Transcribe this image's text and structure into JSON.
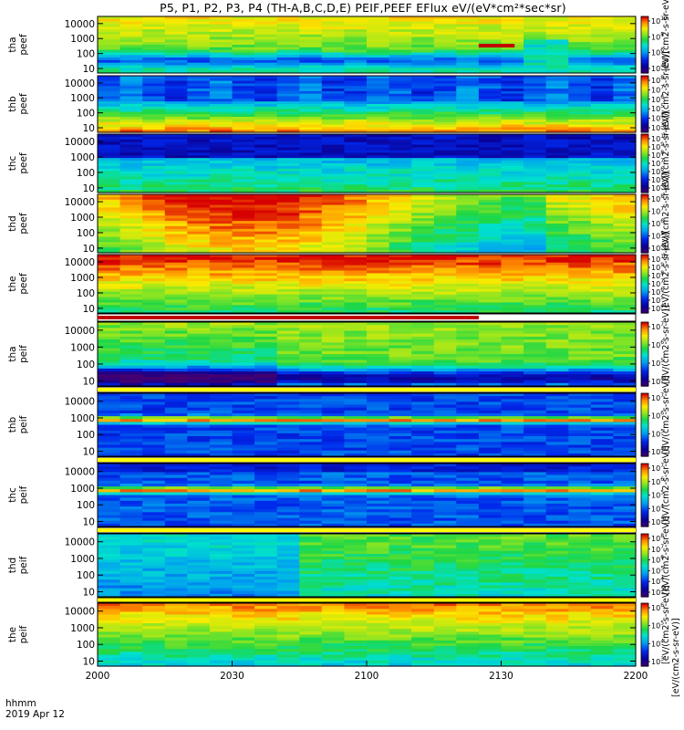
{
  "chart_data": {
    "type": "heatmap",
    "title": "P5, P1, P2, P3, P4 (TH-A,B,C,D,E) PEIF,PEEF EFlux eV/(eV*cm²*sec*sr)",
    "x_axis": {
      "ticks": [
        "2000",
        "2030",
        "2100",
        "2130",
        "2200"
      ],
      "range": [
        "2000",
        "2200"
      ],
      "label_lines": [
        "hhmm",
        "2019 Apr 12"
      ]
    },
    "y_axis": {
      "scale": "log",
      "range": [
        5,
        30000
      ]
    },
    "colorbar": {
      "title": "[eV/(cm2-s-sr-eV)]",
      "colormap": "rainbow (purple-blue-cyan-green-yellow-red)",
      "repeated_title": true
    },
    "panels": [
      {
        "probe": "tha",
        "product": "peef",
        "yticks": [
          "10",
          "100",
          "1000",
          "10000"
        ],
        "cbar_ticks": [
          {
            "base": "10",
            "exp": "10"
          },
          {
            "base": "10",
            "exp": "8"
          },
          {
            "base": "10",
            "exp": "6"
          },
          {
            "base": "10",
            "exp": "4"
          }
        ]
      },
      {
        "probe": "thb",
        "product": "peef",
        "yticks": [
          "10",
          "100",
          "1000",
          "10000"
        ],
        "cbar_ticks": [
          {
            "base": "10",
            "exp": "8"
          },
          {
            "base": "10",
            "exp": "7"
          },
          {
            "base": "10",
            "exp": "6"
          },
          {
            "base": "10",
            "exp": "5"
          },
          {
            "base": "10",
            "exp": "4"
          },
          {
            "base": "10",
            "exp": "3"
          }
        ]
      },
      {
        "probe": "thc",
        "product": "peef",
        "yticks": [
          "10",
          "100",
          "1000",
          "10000"
        ],
        "cbar_ticks": [
          {
            "base": "10",
            "exp": "10"
          },
          {
            "base": "10",
            "exp": "9"
          },
          {
            "base": "10",
            "exp": "8"
          },
          {
            "base": "10",
            "exp": "7"
          },
          {
            "base": "10",
            "exp": "6"
          },
          {
            "base": "10",
            "exp": "5"
          },
          {
            "base": "10",
            "exp": "4"
          }
        ]
      },
      {
        "probe": "thd",
        "product": "peef",
        "yticks": [
          "10",
          "100",
          "1000",
          "10000"
        ],
        "cbar_ticks": [
          {
            "base": "10",
            "exp": "8"
          },
          {
            "base": "10",
            "exp": "7"
          },
          {
            "base": "10",
            "exp": "6"
          },
          {
            "base": "10",
            "exp": "5"
          },
          {
            "base": "10",
            "exp": "4"
          }
        ]
      },
      {
        "probe": "the",
        "product": "peef",
        "yticks": [
          "10",
          "100",
          "1000",
          "10000"
        ],
        "cbar_ticks": [
          {
            "base": "10",
            "exp": "10"
          },
          {
            "base": "10",
            "exp": "9"
          },
          {
            "base": "10",
            "exp": "8"
          },
          {
            "base": "10",
            "exp": "7"
          },
          {
            "base": "10",
            "exp": "6"
          },
          {
            "base": "10",
            "exp": "5"
          },
          {
            "base": "10",
            "exp": "4"
          }
        ]
      },
      {
        "probe": "tha",
        "product": "peif",
        "yticks": [
          "10",
          "100",
          "1000",
          "10000"
        ],
        "cbar_ticks": [
          {
            "base": "10",
            "exp": "7"
          },
          {
            "base": "10",
            "exp": "6"
          },
          {
            "base": "10",
            "exp": "5"
          },
          {
            "base": "10",
            "exp": "4"
          }
        ]
      },
      {
        "probe": "thb",
        "product": "peif",
        "yticks": [
          "10",
          "100",
          "1000",
          "10000"
        ],
        "cbar_ticks": [
          {
            "base": "10",
            "exp": "7"
          },
          {
            "base": "10",
            "exp": "6"
          },
          {
            "base": "10",
            "exp": "5"
          },
          {
            "base": "10",
            "exp": "4"
          }
        ]
      },
      {
        "probe": "thc",
        "product": "peif",
        "yticks": [
          "10",
          "100",
          "1000",
          "10000"
        ],
        "cbar_ticks": [
          {
            "base": "10",
            "exp": "7"
          },
          {
            "base": "10",
            "exp": "6"
          },
          {
            "base": "10",
            "exp": "5"
          },
          {
            "base": "10",
            "exp": "4"
          },
          {
            "base": "10",
            "exp": "3"
          }
        ]
      },
      {
        "probe": "thd",
        "product": "peif",
        "yticks": [
          "10",
          "100",
          "1000",
          "10000"
        ],
        "cbar_ticks": [
          {
            "base": "10",
            "exp": "8"
          },
          {
            "base": "10",
            "exp": "7"
          },
          {
            "base": "10",
            "exp": "6"
          },
          {
            "base": "10",
            "exp": "5"
          },
          {
            "base": "10",
            "exp": "4"
          },
          {
            "base": "10",
            "exp": "3"
          }
        ]
      },
      {
        "probe": "the",
        "product": "peif",
        "yticks": [
          "10",
          "100",
          "1000",
          "10000"
        ],
        "cbar_ticks": [
          {
            "base": "10",
            "exp": "6"
          },
          {
            "base": "10",
            "exp": "5"
          },
          {
            "base": "10",
            "exp": "4"
          },
          {
            "base": "10",
            "exp": "3"
          }
        ]
      }
    ],
    "flag_bars": [
      {
        "panel_index": 0,
        "from": "2125",
        "to": "2133",
        "color": "#c00000"
      },
      {
        "after_panel_index": 4,
        "from": "2000",
        "to": "2125",
        "color": "#c00000"
      },
      {
        "after_panel_index": 5,
        "color": "#ffff00"
      },
      {
        "after_panel_index": 6,
        "color": "#ffff00"
      },
      {
        "after_panel_index": 7,
        "color": "#ffff00"
      },
      {
        "after_panel_index": 8,
        "color": "#ffff00"
      }
    ]
  }
}
